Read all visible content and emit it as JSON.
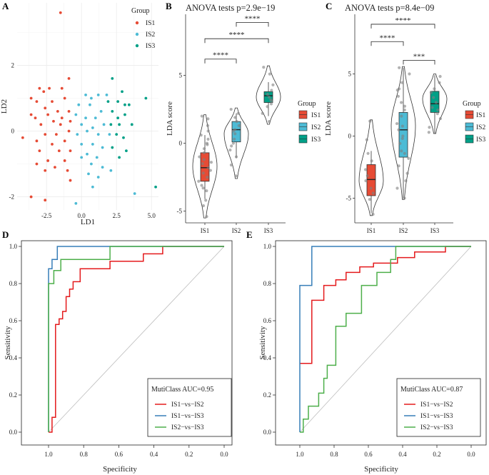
{
  "colors": {
    "IS1": "#E64B35",
    "IS2": "#4DBBD5",
    "IS3": "#00A087",
    "grid": "#ebebeb"
  },
  "roc_colors": [
    "#E41A1C",
    "#377EB8",
    "#4DAF4A"
  ],
  "panels": {
    "A": "A",
    "B": "B",
    "C": "C",
    "D": "D",
    "E": "E"
  },
  "legend": {
    "title": "Group",
    "items": [
      "IS1",
      "IS2",
      "IS3"
    ]
  },
  "chart_data": [
    {
      "id": "A",
      "type": "scatter",
      "xlabel": "LD1",
      "ylabel": "LD2",
      "xlim": [
        -4.6,
        5.5
      ],
      "ylim": [
        -2.4,
        3.9
      ],
      "xticks": [
        -2.5,
        0.0,
        2.5,
        5.0
      ],
      "xtick_labels": [
        "-2.5",
        "0.0",
        "2.5",
        "5.0"
      ],
      "yticks": [
        -2,
        0,
        2
      ],
      "ytick_labels": [
        "-2",
        "0",
        "2"
      ],
      "series": [
        {
          "name": "IS1",
          "points": [
            [
              -1.5,
              3.6
            ],
            [
              -3.0,
              1.3
            ],
            [
              -2.7,
              1.2
            ],
            [
              -2.3,
              1.3
            ],
            [
              -1.4,
              1.3
            ],
            [
              -0.9,
              1.6
            ],
            [
              -3.6,
              1.0
            ],
            [
              -3.2,
              0.9
            ],
            [
              -2.1,
              0.9
            ],
            [
              -1.2,
              1.0
            ],
            [
              -2.6,
              0.7
            ],
            [
              -1.7,
              0.6
            ],
            [
              -0.9,
              0.6
            ],
            [
              -3.3,
              0.4
            ],
            [
              -2.4,
              0.5
            ],
            [
              -1.4,
              0.4
            ],
            [
              -0.8,
              0.3
            ],
            [
              -2.9,
              0.2
            ],
            [
              -2.0,
              0.3
            ],
            [
              -1.5,
              0.2
            ],
            [
              -3.6,
              0.5
            ],
            [
              -1.8,
              -0.1
            ],
            [
              -0.9,
              0.0
            ],
            [
              -2.6,
              -0.1
            ],
            [
              -3.2,
              -0.3
            ],
            [
              -4.2,
              -0.2
            ],
            [
              -1.2,
              -0.3
            ],
            [
              -2.1,
              -0.4
            ],
            [
              -3.0,
              -0.6
            ],
            [
              -1.6,
              -0.6
            ],
            [
              -0.8,
              -0.6
            ],
            [
              -2.4,
              -0.9
            ],
            [
              -1.2,
              -0.9
            ],
            [
              -3.2,
              -1.0
            ],
            [
              -1.9,
              -1.1
            ],
            [
              -2.6,
              -1.2
            ],
            [
              -1.0,
              -1.2
            ],
            [
              -0.8,
              -1.5
            ],
            [
              -3.6,
              -2.0
            ],
            [
              -2.6,
              -2.1
            ]
          ]
        },
        {
          "name": "IS2",
          "points": [
            [
              0.3,
              1.1
            ],
            [
              0.7,
              1.0
            ],
            [
              1.2,
              1.1
            ],
            [
              1.8,
              1.1
            ],
            [
              -0.2,
              0.8
            ],
            [
              0.6,
              0.8
            ],
            [
              1.4,
              0.6
            ],
            [
              -0.4,
              0.5
            ],
            [
              0.3,
              0.4
            ],
            [
              1.0,
              0.4
            ],
            [
              0.0,
              0.2
            ],
            [
              0.8,
              0.1
            ],
            [
              1.6,
              0.2
            ],
            [
              -0.3,
              -0.1
            ],
            [
              0.4,
              0.0
            ],
            [
              1.2,
              -0.1
            ],
            [
              2.0,
              -0.1
            ],
            [
              0.0,
              -0.4
            ],
            [
              0.8,
              -0.4
            ],
            [
              1.5,
              -0.5
            ],
            [
              0.4,
              -0.7
            ],
            [
              1.1,
              -0.8
            ],
            [
              0.0,
              -0.8
            ],
            [
              0.7,
              -1.0
            ],
            [
              1.5,
              -1.1
            ],
            [
              2.1,
              -1.2
            ],
            [
              0.5,
              -1.3
            ],
            [
              1.2,
              -1.4
            ],
            [
              0.8,
              -1.7
            ],
            [
              3.8,
              -1.9
            ],
            [
              -0.4,
              -2.2
            ]
          ]
        },
        {
          "name": "IS3",
          "points": [
            [
              2.2,
              1.6
            ],
            [
              2.9,
              1.2
            ],
            [
              1.9,
              0.9
            ],
            [
              2.6,
              0.9
            ],
            [
              3.1,
              0.8
            ],
            [
              4.6,
              1.0
            ],
            [
              3.4,
              0.8
            ],
            [
              2.2,
              0.6
            ],
            [
              2.6,
              0.4
            ],
            [
              3.1,
              0.5
            ],
            [
              2.7,
              0.2
            ],
            [
              2.1,
              0.2
            ],
            [
              3.6,
              0.2
            ],
            [
              2.5,
              -0.1
            ],
            [
              3.0,
              -0.2
            ],
            [
              2.2,
              -0.5
            ],
            [
              3.2,
              -0.6
            ],
            [
              2.7,
              -0.8
            ],
            [
              5.3,
              -1.7
            ]
          ]
        }
      ]
    },
    {
      "id": "B",
      "type": "violin",
      "title": "ANOVA tests p=2.9e−19",
      "ylabel": "LDA score",
      "categories": [
        "IS1",
        "IS2",
        "IS3"
      ],
      "ylim": [
        -5.6,
        9.5
      ],
      "yticks": [
        -5,
        0,
        5
      ],
      "ytick_labels": [
        "-5",
        "0",
        "5"
      ],
      "violins": [
        [
          -5.5,
          2.1,
          -1.7
        ],
        [
          -2.6,
          2.6,
          0.7
        ],
        [
          1.4,
          5.7,
          3.4
        ]
      ],
      "boxes": [
        [
          -4.1,
          -2.8,
          -1.8,
          -0.7,
          0.6
        ],
        [
          -1.1,
          0.1,
          1.0,
          1.6,
          2.2
        ],
        [
          2.0,
          3.0,
          3.5,
          3.8,
          4.5
        ]
      ],
      "points": [
        [
          -5.4,
          -4.6,
          -4.2,
          -3.5,
          -3.1,
          -2.8,
          -2.5,
          -2.2,
          -2.0,
          -1.8,
          -1.5,
          -1.2,
          -1.0,
          -0.7,
          -0.4,
          0.0,
          0.3,
          0.6,
          0.9,
          1.3,
          1.8,
          2.0,
          -0.1,
          -3.3,
          -1.4
        ],
        [
          -2.4,
          -1.6,
          -1.0,
          -0.5,
          0.0,
          0.3,
          0.7,
          1.0,
          1.3,
          1.6,
          1.9,
          2.2,
          2.5,
          0.9,
          -0.2
        ],
        [
          1.6,
          2.2,
          2.7,
          3.1,
          3.4,
          3.6,
          3.9,
          4.3,
          5.1,
          5.6,
          3.2,
          2.9
        ]
      ],
      "comparisons": [
        {
          "label": "****",
          "pair": [
            1,
            2
          ],
          "y": 6.2
        },
        {
          "label": "****",
          "pair": [
            1,
            3
          ],
          "y": 7.7
        },
        {
          "label": "****",
          "pair": [
            2,
            3
          ],
          "y": 8.9
        }
      ]
    },
    {
      "id": "C",
      "type": "violin",
      "title": "ANOVA tests p=8.4e−09",
      "ylabel": "LDA score",
      "categories": [
        "IS1",
        "IS2",
        "IS3"
      ],
      "ylim": [
        -6.7,
        9.8
      ],
      "yticks": [
        -5,
        0,
        5
      ],
      "ytick_labels": [
        "-5",
        "0",
        "5"
      ],
      "violins": [
        [
          -6.4,
          1.3,
          -3.6
        ],
        [
          -5.1,
          5.6,
          0.8
        ],
        [
          0.2,
          5.0,
          3.0
        ]
      ],
      "boxes": [
        [
          -6.2,
          -4.8,
          -3.5,
          -2.3,
          -1.2
        ],
        [
          -5.0,
          -1.7,
          0.5,
          1.9,
          5.5
        ],
        [
          0.2,
          1.9,
          2.6,
          3.6,
          4.9
        ]
      ],
      "points": [
        [
          -6.3,
          -5.1,
          -4.6,
          -4.2,
          -3.6,
          -3.2,
          -2.7,
          -2.0,
          -1.4,
          -0.3,
          1.2
        ],
        [
          -5.0,
          -4.2,
          -3.6,
          -3.0,
          -2.4,
          -1.8,
          -1.2,
          -0.6,
          0.0,
          0.5,
          1.0,
          1.6,
          2.1,
          2.7,
          3.2,
          3.8,
          4.3,
          5.0,
          5.5,
          -1.4,
          0.8,
          2.4,
          3.7,
          -0.2
        ],
        [
          0.3,
          0.7,
          1.4,
          1.8,
          2.3,
          2.7,
          3.1,
          3.5,
          3.8,
          4.3,
          4.8,
          2.1
        ]
      ],
      "comparisons": [
        {
          "label": "***",
          "pair": [
            2,
            3
          ],
          "y": 6.1
        },
        {
          "label": "****",
          "pair": [
            1,
            2
          ],
          "y": 7.6
        },
        {
          "label": "****",
          "pair": [
            1,
            3
          ],
          "y": 9.0
        }
      ]
    },
    {
      "id": "D",
      "type": "line",
      "xlabel": "Specificity",
      "ylabel": "Sensitivity",
      "xlim": [
        1.0,
        0.0
      ],
      "ylim": [
        0.0,
        1.0
      ],
      "xticks": [
        1.0,
        0.8,
        0.6,
        0.4,
        0.2,
        0.0
      ],
      "xtick_labels": [
        "1.0",
        "0.8",
        "0.6",
        "0.4",
        "0.2",
        "0.0"
      ],
      "yticks": [
        0.0,
        0.2,
        0.4,
        0.6,
        0.8,
        1.0
      ],
      "ytick_labels": [
        "0.0",
        "0.2",
        "0.4",
        "0.6",
        "0.8",
        "1.0"
      ],
      "auc_text": "MutiClass AUC=0.95",
      "series": [
        {
          "name": "IS1−vs−IS2",
          "x": [
            1.0,
            0.98,
            0.98,
            0.96,
            0.96,
            0.94,
            0.94,
            0.92,
            0.92,
            0.9,
            0.9,
            0.88,
            0.88,
            0.86,
            0.86,
            0.82,
            0.82,
            0.65,
            0.65,
            0.46,
            0.46,
            0.35,
            0.35,
            0.0
          ],
          "y": [
            0.0,
            0.0,
            0.08,
            0.08,
            0.58,
            0.58,
            0.61,
            0.61,
            0.65,
            0.65,
            0.73,
            0.73,
            0.77,
            0.77,
            0.81,
            0.81,
            0.88,
            0.88,
            0.92,
            0.92,
            0.96,
            0.96,
            1.0,
            1.0
          ]
        },
        {
          "name": "IS1−vs−IS3",
          "x": [
            1.0,
            1.0,
            0.98,
            0.98,
            0.95,
            0.95,
            0.0
          ],
          "y": [
            0.0,
            0.88,
            0.88,
            0.93,
            0.93,
            1.0,
            1.0
          ]
        },
        {
          "name": "IS2−vs−IS3",
          "x": [
            1.0,
            1.0,
            0.97,
            0.97,
            0.93,
            0.93,
            0.65,
            0.65,
            0.0
          ],
          "y": [
            0.0,
            0.8,
            0.8,
            0.87,
            0.87,
            0.93,
            0.93,
            1.0,
            1.0
          ]
        }
      ]
    },
    {
      "id": "E",
      "type": "line",
      "xlabel": "Specificity",
      "ylabel": "Sensitivity",
      "xlim": [
        1.0,
        0.0
      ],
      "ylim": [
        0.0,
        1.0
      ],
      "xticks": [
        1.0,
        0.8,
        0.6,
        0.4,
        0.2,
        0.0
      ],
      "xtick_labels": [
        "1.0",
        "0.8",
        "0.6",
        "0.4",
        "0.2",
        "0.0"
      ],
      "yticks": [
        0.0,
        0.2,
        0.4,
        0.6,
        0.8,
        1.0
      ],
      "ytick_labels": [
        "0.0",
        "0.2",
        "0.4",
        "0.6",
        "0.8",
        "1.0"
      ],
      "auc_text": "MutiClass AUC=0.87",
      "series": [
        {
          "name": "IS1−vs−IS2",
          "x": [
            1.0,
            0.93,
            0.93,
            0.86,
            0.86,
            0.79,
            0.79,
            0.73,
            0.73,
            0.65,
            0.65,
            0.57,
            0.57,
            0.43,
            0.43,
            0.33,
            0.33,
            0.15,
            0.15,
            0.0
          ],
          "y": [
            0.37,
            0.37,
            0.71,
            0.71,
            0.79,
            0.79,
            0.82,
            0.82,
            0.86,
            0.86,
            0.89,
            0.89,
            0.91,
            0.91,
            0.94,
            0.94,
            0.97,
            0.97,
            1.0,
            1.0
          ]
        },
        {
          "name": "IS1−vs−IS3",
          "x": [
            1.0,
            1.0,
            0.93,
            0.93,
            0.0
          ],
          "y": [
            0.0,
            0.79,
            0.79,
            1.0,
            1.0
          ]
        },
        {
          "name": "IS2−vs−IS3",
          "x": [
            1.0,
            0.98,
            0.98,
            0.95,
            0.95,
            0.89,
            0.89,
            0.86,
            0.86,
            0.84,
            0.84,
            0.79,
            0.79,
            0.73,
            0.73,
            0.64,
            0.64,
            0.55,
            0.55,
            0.47,
            0.47,
            0.44,
            0.44,
            0.0
          ],
          "y": [
            0.0,
            0.0,
            0.07,
            0.07,
            0.14,
            0.14,
            0.21,
            0.21,
            0.29,
            0.29,
            0.36,
            0.36,
            0.57,
            0.57,
            0.64,
            0.64,
            0.79,
            0.79,
            0.86,
            0.86,
            0.93,
            0.93,
            1.0,
            1.0
          ]
        }
      ]
    }
  ]
}
